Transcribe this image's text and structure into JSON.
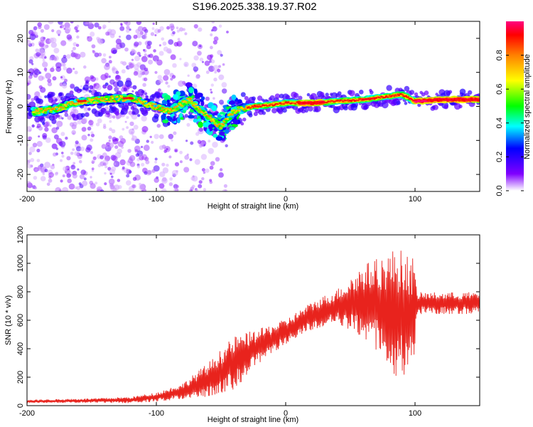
{
  "title": "S196.2025.338.19.37.R02",
  "colors": {
    "snr_line": "#e8231d",
    "axis": "#000000"
  },
  "chart_data": [
    {
      "type": "heatmap",
      "name": "spectrogram",
      "xlabel": "Height of straight line (km)",
      "ylabel": "Frequency (Hz)",
      "xlim": [
        -200,
        150
      ],
      "ylim": [
        -25,
        25
      ],
      "xticks": [
        -200,
        -100,
        0,
        100
      ],
      "yticks": [
        -20,
        -10,
        0,
        10,
        20
      ],
      "ridge": [
        {
          "x": -190,
          "f": -1.5
        },
        {
          "x": -175,
          "f": -0.5
        },
        {
          "x": -160,
          "f": 1.5
        },
        {
          "x": -140,
          "f": 2.0
        },
        {
          "x": -120,
          "f": 2.5
        },
        {
          "x": -105,
          "f": 0.5
        },
        {
          "x": -90,
          "f": -1.5
        },
        {
          "x": -75,
          "f": 2.0
        },
        {
          "x": -60,
          "f": -3.0
        },
        {
          "x": -50,
          "f": -6.0
        },
        {
          "x": -40,
          "f": -1.5
        },
        {
          "x": -25,
          "f": 0.0
        },
        {
          "x": -10,
          "f": 0.5
        },
        {
          "x": 0,
          "f": 1.0
        },
        {
          "x": 20,
          "f": 1.0
        },
        {
          "x": 40,
          "f": 1.5
        },
        {
          "x": 60,
          "f": 2.0
        },
        {
          "x": 80,
          "f": 3.0
        },
        {
          "x": 90,
          "f": 3.5
        },
        {
          "x": 100,
          "f": 1.5
        },
        {
          "x": 120,
          "f": 2.0
        },
        {
          "x": 150,
          "f": 2.0
        }
      ],
      "colorbar": {
        "label": "Normalized spectral amplitude",
        "range": [
          0,
          1
        ],
        "ticks": [
          "0.0",
          "0.2",
          "0.4",
          "0.6",
          "0.8"
        ]
      }
    },
    {
      "type": "line",
      "name": "snr",
      "xlabel": "Height of straight line (km)",
      "ylabel": "SNR (10 * v/v)",
      "xlim": [
        -200,
        150
      ],
      "ylim": [
        0,
        1200
      ],
      "xticks": [
        -200,
        -100,
        0,
        100
      ],
      "yticks": [
        0,
        200,
        400,
        600,
        800,
        1000,
        1200
      ],
      "envelope": [
        {
          "x": -200,
          "mean": 30,
          "amp": 10
        },
        {
          "x": -150,
          "mean": 35,
          "amp": 15
        },
        {
          "x": -120,
          "mean": 40,
          "amp": 20
        },
        {
          "x": -100,
          "mean": 60,
          "amp": 30
        },
        {
          "x": -80,
          "mean": 100,
          "amp": 50
        },
        {
          "x": -60,
          "mean": 180,
          "amp": 110
        },
        {
          "x": -40,
          "mean": 300,
          "amp": 170
        },
        {
          "x": -20,
          "mean": 420,
          "amp": 110
        },
        {
          "x": 0,
          "mean": 520,
          "amp": 80
        },
        {
          "x": 20,
          "mean": 630,
          "amp": 90
        },
        {
          "x": 40,
          "mean": 700,
          "amp": 110
        },
        {
          "x": 60,
          "mean": 720,
          "amp": 250
        },
        {
          "x": 75,
          "mean": 700,
          "amp": 320
        },
        {
          "x": 85,
          "mean": 650,
          "amp": 420
        },
        {
          "x": 98,
          "mean": 640,
          "amp": 380
        },
        {
          "x": 102,
          "mean": 720,
          "amp": 70
        },
        {
          "x": 150,
          "mean": 720,
          "amp": 70
        }
      ]
    }
  ]
}
